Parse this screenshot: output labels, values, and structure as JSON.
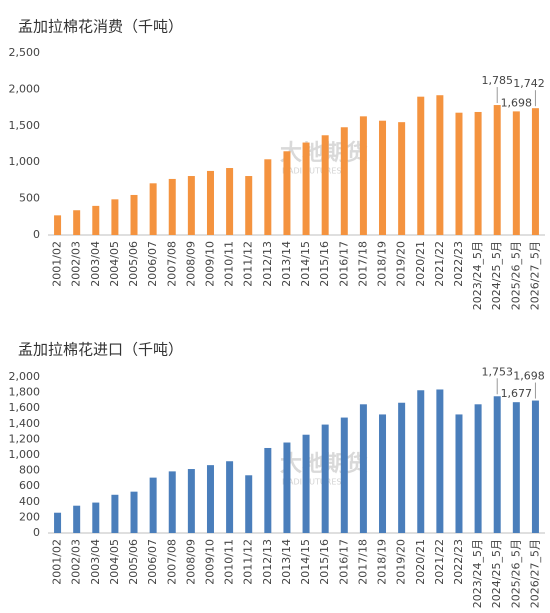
{
  "chart_data": [
    {
      "type": "bar",
      "title": "孟加拉棉花消费（千吨）",
      "watermark": "大地期货",
      "watermark_sub": "DADI FUTURES",
      "categories": [
        "2001/02",
        "2002/03",
        "2003/04",
        "2004/05",
        "2005/06",
        "2006/07",
        "2007/08",
        "2008/09",
        "2009/10",
        "2010/11",
        "2011/12",
        "2012/13",
        "2013/14",
        "2014/15",
        "2015/16",
        "2016/17",
        "2017/18",
        "2018/19",
        "2019/20",
        "2020/21",
        "2021/22",
        "2022/23",
        "2023/24_5月",
        "2024/25_5月",
        "2025/26_5月",
        "2026/27_5月"
      ],
      "values": [
        270,
        340,
        400,
        490,
        550,
        710,
        770,
        810,
        880,
        920,
        810,
        1040,
        1150,
        1270,
        1370,
        1480,
        1630,
        1570,
        1550,
        1900,
        1920,
        1680,
        1690,
        1785,
        1698,
        1742
      ],
      "value_labels": [
        null,
        null,
        null,
        null,
        null,
        null,
        null,
        null,
        null,
        null,
        null,
        null,
        null,
        null,
        null,
        null,
        null,
        null,
        null,
        null,
        null,
        null,
        null,
        "1,785",
        "1,698",
        "1,742"
      ],
      "color": "#f4933f",
      "ylim": [
        0,
        2500
      ],
      "yticks": [
        0,
        500,
        {
          "value": 1000,
          "label": "1,000"
        },
        {
          "value": 1500,
          "label": "1,500"
        },
        {
          "value": 2000,
          "label": "2,000"
        },
        {
          "value": 2500,
          "label": "2,500"
        }
      ]
    },
    {
      "type": "bar",
      "title": "孟加拉棉花进口（千吨）",
      "watermark": "大地期货",
      "watermark_sub": "DADI FUTURES",
      "categories": [
        "2001/02",
        "2002/03",
        "2003/04",
        "2004/05",
        "2005/06",
        "2006/07",
        "2007/08",
        "2008/09",
        "2009/10",
        "2010/11",
        "2011/12",
        "2012/13",
        "2013/14",
        "2014/15",
        "2015/16",
        "2016/17",
        "2017/18",
        "2018/19",
        "2019/20",
        "2020/21",
        "2021/22",
        "2022/23",
        "2023/24_5月",
        "2024/25_5月",
        "2025/26_5月",
        "2026/27_5月"
      ],
      "values": [
        260,
        350,
        390,
        490,
        530,
        710,
        790,
        820,
        870,
        920,
        740,
        1090,
        1160,
        1260,
        1390,
        1480,
        1650,
        1520,
        1670,
        1830,
        1840,
        1520,
        1650,
        1753,
        1677,
        1698
      ],
      "value_labels": [
        null,
        null,
        null,
        null,
        null,
        null,
        null,
        null,
        null,
        null,
        null,
        null,
        null,
        null,
        null,
        null,
        null,
        null,
        null,
        null,
        null,
        null,
        null,
        "1,753",
        "1,677",
        "1,698"
      ],
      "color": "#4a7ebb",
      "ylim": [
        0,
        2000
      ],
      "yticks": [
        0,
        200,
        400,
        600,
        800,
        {
          "value": 1000,
          "label": "1,000"
        },
        {
          "value": 1200,
          "label": "1,200"
        },
        {
          "value": 1400,
          "label": "1,400"
        },
        {
          "value": 1600,
          "label": "1,600"
        },
        {
          "value": 1800,
          "label": "1,800"
        },
        {
          "value": 2000,
          "label": "2,000"
        }
      ]
    }
  ]
}
